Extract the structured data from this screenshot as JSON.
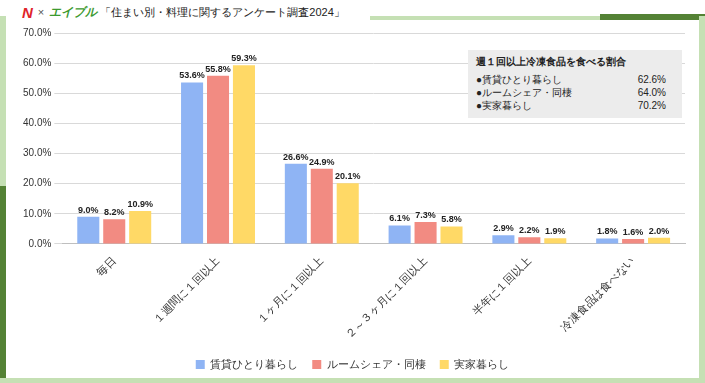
{
  "header": {
    "logo": "N",
    "separator": "×",
    "brand": "エイブル"
  },
  "chart_data": {
    "type": "bar",
    "title": "「住まい別・料理に関するアンケート調査2024」",
    "categories": [
      "毎日",
      "１週間に１回以上",
      "１ヶ月に１回以上",
      "２～３ヶ月に１回以上",
      "半年に１回以上",
      "冷凍食品は食べない"
    ],
    "series": [
      {
        "name": "賃貸ひとり暮らし",
        "color": "#8fb4f4",
        "values": [
          9.0,
          53.6,
          26.6,
          6.1,
          2.9,
          1.8
        ],
        "value_labels": [
          "9.0%",
          "53.6%",
          "26.6%",
          "6.1%",
          "2.9%",
          "1.8%"
        ]
      },
      {
        "name": "ルームシェア・同棲",
        "color": "#f28b82",
        "values": [
          8.2,
          55.8,
          24.9,
          7.3,
          2.2,
          1.6
        ],
        "value_labels": [
          "8.2%",
          "55.8%",
          "24.9%",
          "7.3%",
          "2.2%",
          "1.6%"
        ]
      },
      {
        "name": "実家暮らし",
        "color": "#ffd966",
        "values": [
          10.9,
          59.3,
          20.1,
          5.8,
          1.9,
          2.0
        ],
        "value_labels": [
          "10.9%",
          "59.3%",
          "20.1%",
          "5.8%",
          "1.9%",
          "2.0%"
        ]
      }
    ],
    "ylim": [
      0,
      70
    ],
    "yticks": [
      {
        "value": 0,
        "label": "0.0%"
      },
      {
        "value": 10,
        "label": "10.0%"
      },
      {
        "value": 20,
        "label": "20.0%"
      },
      {
        "value": 30,
        "label": "30.0%"
      },
      {
        "value": 40,
        "label": "40.0%"
      },
      {
        "value": 50,
        "label": "50.0%"
      },
      {
        "value": 60,
        "label": "60.0%"
      },
      {
        "value": 70,
        "label": "70.0%"
      }
    ],
    "grid": true,
    "legend": "bottom",
    "data_labels": true,
    "annotations": [
      {
        "title": "週１回以上冷凍食品を食べる割合",
        "items": [
          {
            "label": "●賃貸ひとり暮らし",
            "text": "62.6%"
          },
          {
            "label": "●ルームシェア・同棲",
            "text": "64.0%"
          },
          {
            "label": "●実家暮らし",
            "text": "70.2%"
          }
        ]
      }
    ]
  }
}
